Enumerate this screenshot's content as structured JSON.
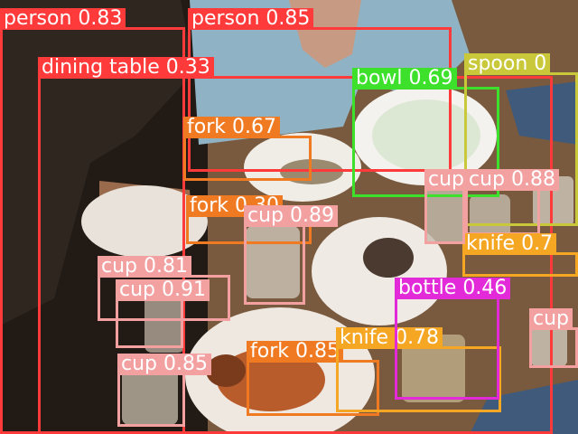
{
  "detections": [
    {
      "label": "person 0.83",
      "color": "#ff3a3a"
    },
    {
      "label": "person 0.85",
      "color": "#ff3a3a"
    },
    {
      "label": "dining table 0.33",
      "color": "#ff3a3a"
    },
    {
      "label": "bowl 0.69",
      "color": "#3de02a"
    },
    {
      "label": "spoon 0",
      "color": "#c8c83a"
    },
    {
      "label": "fork 0.67",
      "color": "#f07a22"
    },
    {
      "label": "fork 0.30",
      "color": "#f07a22"
    },
    {
      "label": "cup 0.89",
      "color": "#f2a0a0"
    },
    {
      "label": "cup 0.81",
      "color": "#f2a0a0"
    },
    {
      "label": "cup 0.91",
      "color": "#f2a0a0"
    },
    {
      "label": "cup 0.85",
      "color": "#f2a0a0"
    },
    {
      "label": "fork 0.85",
      "color": "#f07a22"
    },
    {
      "label": "knife 0.78",
      "color": "#f5a623"
    },
    {
      "label": "bottle 0.46",
      "color": "#e22ad8"
    },
    {
      "label": "cup",
      "color": "#f2a0a0"
    },
    {
      "label": "cup 0.88",
      "color": "#f2a0a0"
    },
    {
      "label": "knife 0.7",
      "color": "#f5a623"
    },
    {
      "label": "cup",
      "color": "#f2a0a0"
    }
  ]
}
